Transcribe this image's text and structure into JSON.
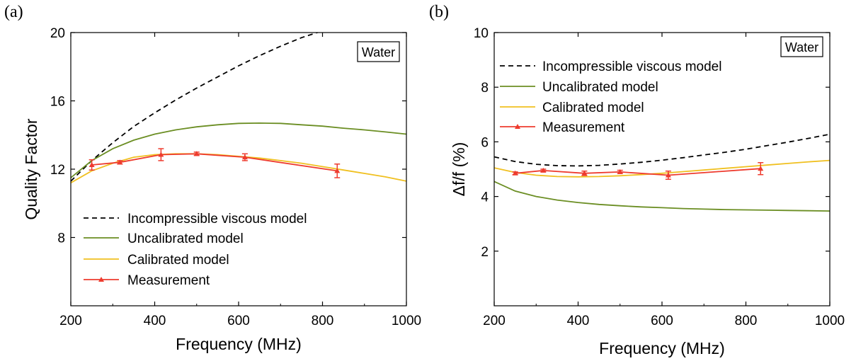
{
  "panels": [
    {
      "panel_label": "(a)",
      "box_label": "Water",
      "legend": [
        "Incompressible viscous model",
        "Uncalibrated model",
        "Calibrated model",
        "Measurement"
      ],
      "chart_data": {
        "type": "line",
        "xlabel": "Frequency (MHz)",
        "ylabel": "Quality Factor",
        "xlim": [
          200,
          1000
        ],
        "ylim": [
          4,
          20
        ],
        "xticks": [
          200,
          400,
          600,
          800,
          1000
        ],
        "yticks": [
          8,
          12,
          16,
          20
        ],
        "legend_position": "bottom-left",
        "series": [
          {
            "name": "Incompressible viscous model",
            "style": "dashed",
            "color": "#000000",
            "x": [
              200,
              250,
              300,
              350,
              400,
              450,
              500,
              550,
              600,
              650,
              700,
              750,
              800
            ],
            "y": [
              11.3,
              12.5,
              13.55,
              14.5,
              15.3,
              16.05,
              16.75,
              17.4,
              18.05,
              18.65,
              19.2,
              19.7,
              20.1
            ]
          },
          {
            "name": "Uncalibrated model",
            "style": "solid",
            "color": "#6b8e23",
            "x": [
              200,
              250,
              300,
              350,
              400,
              450,
              500,
              550,
              600,
              650,
              700,
              750,
              800,
              850,
              900,
              950,
              1000
            ],
            "y": [
              11.5,
              12.5,
              13.2,
              13.7,
              14.05,
              14.3,
              14.48,
              14.6,
              14.68,
              14.7,
              14.68,
              14.6,
              14.52,
              14.4,
              14.3,
              14.18,
              14.05
            ]
          },
          {
            "name": "Calibrated model",
            "style": "solid",
            "color": "#f0c020",
            "x": [
              200,
              250,
              300,
              350,
              400,
              450,
              500,
              550,
              600,
              650,
              700,
              750,
              800,
              850,
              900,
              950,
              1000
            ],
            "y": [
              11.2,
              11.9,
              12.35,
              12.7,
              12.85,
              12.9,
              12.9,
              12.85,
              12.75,
              12.65,
              12.5,
              12.35,
              12.15,
              11.95,
              11.75,
              11.55,
              11.3
            ]
          },
          {
            "name": "Measurement",
            "style": "solid-markers",
            "color": "#ee3b2e",
            "x": [
              250,
              317,
              415,
              500,
              615,
              835
            ],
            "y": [
              12.25,
              12.4,
              12.85,
              12.9,
              12.7,
              11.9
            ],
            "yerr": [
              0.3,
              0.1,
              0.35,
              0.1,
              0.2,
              0.4
            ]
          }
        ]
      }
    },
    {
      "panel_label": "(b)",
      "box_label": "Water",
      "legend": [
        "Incompressible viscous model",
        "Uncalibrated model",
        "Calibrated model",
        "Measurement"
      ],
      "chart_data": {
        "type": "line",
        "xlabel": "Frequency (MHz)",
        "ylabel": "Δf/f (%)",
        "xlim": [
          200,
          1000
        ],
        "ylim": [
          0,
          10
        ],
        "xticks": [
          200,
          400,
          600,
          800,
          1000
        ],
        "yticks": [
          2,
          4,
          6,
          8,
          10
        ],
        "legend_position": "top-left",
        "series": [
          {
            "name": "Incompressible viscous model",
            "style": "dashed",
            "color": "#000000",
            "x": [
              200,
              250,
              300,
              350,
              400,
              450,
              500,
              550,
              600,
              650,
              700,
              750,
              800,
              850,
              900,
              950,
              1000
            ],
            "y": [
              5.45,
              5.28,
              5.18,
              5.13,
              5.12,
              5.14,
              5.19,
              5.25,
              5.33,
              5.42,
              5.52,
              5.62,
              5.73,
              5.86,
              5.99,
              6.13,
              6.28
            ]
          },
          {
            "name": "Uncalibrated model",
            "style": "solid",
            "color": "#6b8e23",
            "x": [
              200,
              250,
              300,
              350,
              400,
              450,
              500,
              550,
              600,
              650,
              700,
              750,
              800,
              850,
              900,
              950,
              1000
            ],
            "y": [
              4.55,
              4.2,
              4.0,
              3.87,
              3.78,
              3.71,
              3.66,
              3.62,
              3.59,
              3.56,
              3.54,
              3.52,
              3.51,
              3.5,
              3.49,
              3.48,
              3.47
            ]
          },
          {
            "name": "Calibrated model",
            "style": "solid",
            "color": "#f0c020",
            "x": [
              200,
              250,
              300,
              350,
              400,
              450,
              500,
              550,
              600,
              650,
              700,
              750,
              800,
              850,
              900,
              950,
              1000
            ],
            "y": [
              5.05,
              4.88,
              4.78,
              4.73,
              4.72,
              4.73,
              4.76,
              4.8,
              4.85,
              4.91,
              4.97,
              5.03,
              5.09,
              5.15,
              5.21,
              5.27,
              5.32
            ]
          },
          {
            "name": "Measurement",
            "style": "solid-markers",
            "color": "#ee3b2e",
            "x": [
              250,
              317,
              415,
              500,
              615,
              835
            ],
            "y": [
              4.85,
              4.95,
              4.85,
              4.9,
              4.78,
              5.02
            ],
            "yerr": [
              0.05,
              0.05,
              0.08,
              0.06,
              0.15,
              0.22
            ]
          }
        ]
      }
    }
  ]
}
